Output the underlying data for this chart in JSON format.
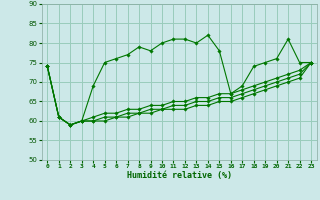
{
  "xlabel": "Humidité relative (%)",
  "xlim": [
    -0.5,
    23.5
  ],
  "ylim": [
    50,
    90
  ],
  "yticks": [
    50,
    55,
    60,
    65,
    70,
    75,
    80,
    85,
    90
  ],
  "xticks": [
    0,
    1,
    2,
    3,
    4,
    5,
    6,
    7,
    8,
    9,
    10,
    11,
    12,
    13,
    14,
    15,
    16,
    17,
    18,
    19,
    20,
    21,
    22,
    23
  ],
  "background_color": "#cce8e8",
  "grid_color": "#99ccbb",
  "line_color": "#007700",
  "marker_color": "#007700",
  "series": [
    [
      74,
      61,
      59,
      60,
      69,
      75,
      76,
      77,
      79,
      78,
      80,
      81,
      81,
      80,
      82,
      78,
      67,
      69,
      74,
      75,
      76,
      81,
      75,
      75
    ],
    [
      74,
      61,
      59,
      60,
      61,
      62,
      62,
      63,
      63,
      64,
      64,
      65,
      65,
      66,
      66,
      67,
      67,
      68,
      69,
      70,
      71,
      72,
      73,
      75
    ],
    [
      74,
      61,
      59,
      60,
      60,
      61,
      61,
      62,
      62,
      63,
      63,
      64,
      64,
      65,
      65,
      66,
      66,
      67,
      68,
      69,
      70,
      71,
      72,
      75
    ],
    [
      74,
      61,
      59,
      60,
      60,
      60,
      61,
      61,
      62,
      62,
      63,
      63,
      63,
      64,
      64,
      65,
      65,
      66,
      67,
      68,
      69,
      70,
      71,
      75
    ]
  ]
}
